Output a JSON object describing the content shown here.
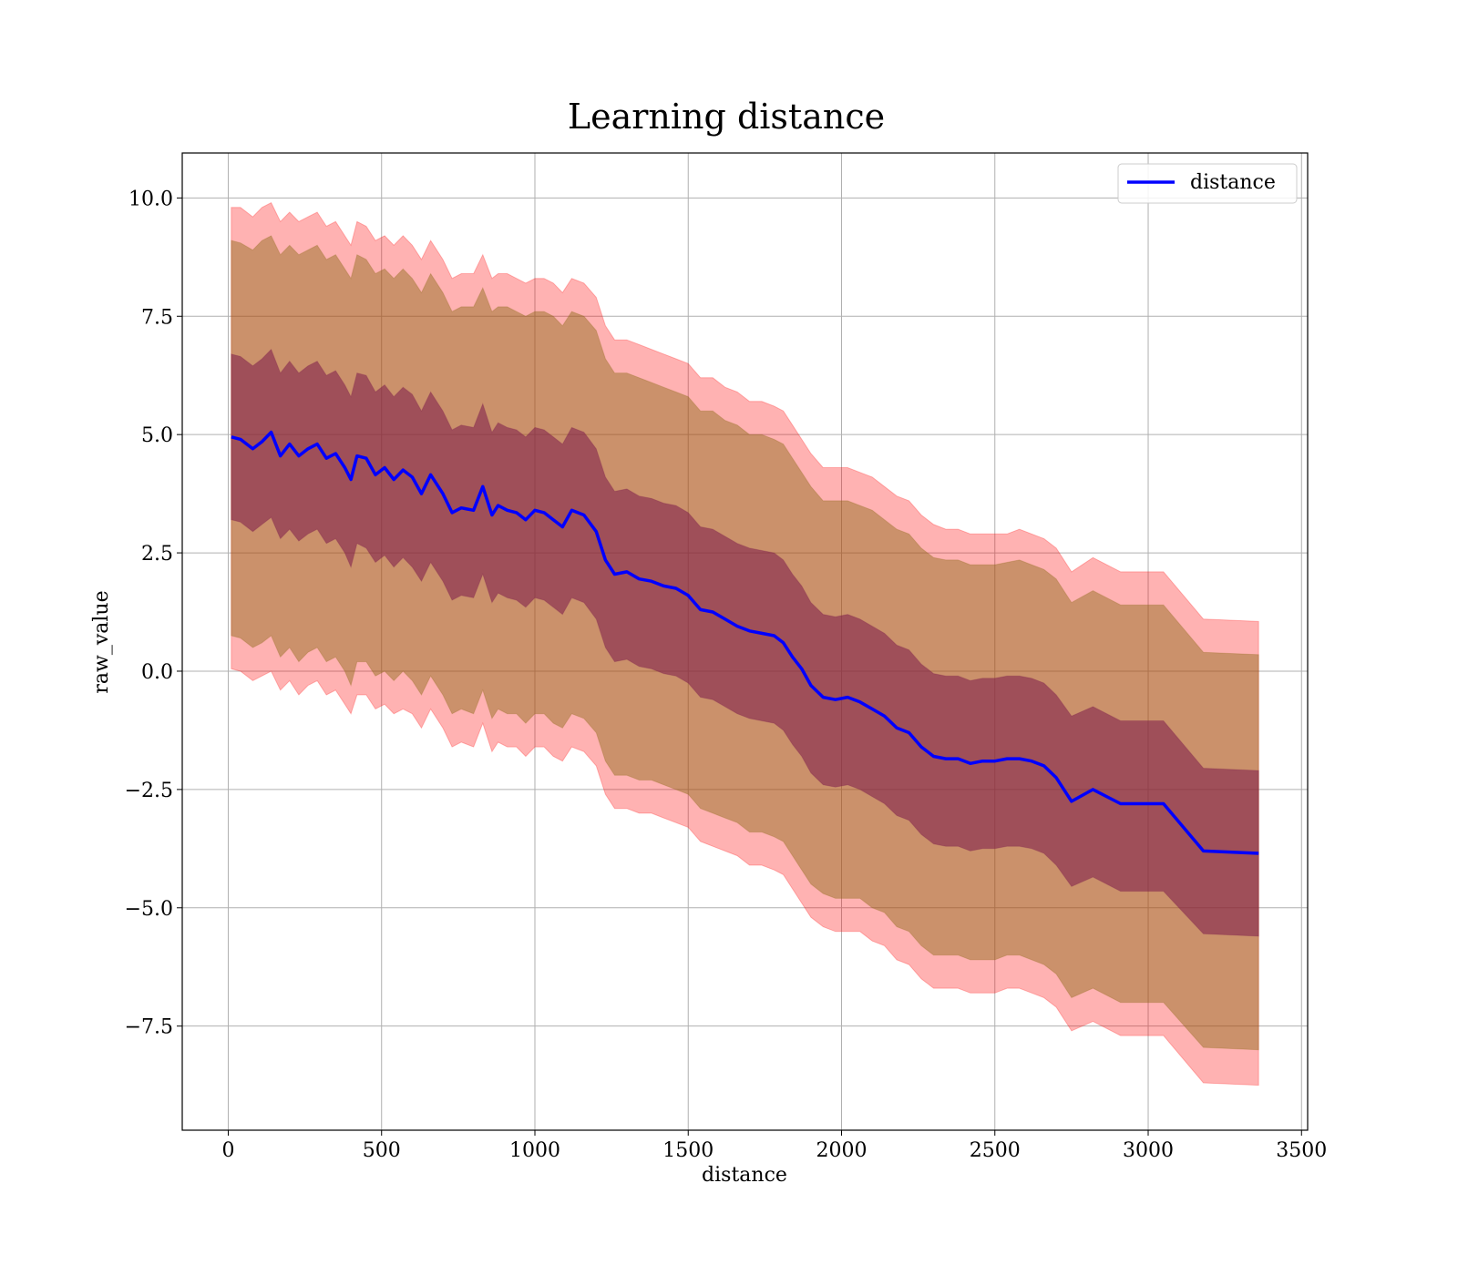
{
  "chart_data": {
    "type": "line",
    "title": "Learning distance",
    "xlabel": "distance",
    "ylabel": "raw_value",
    "xlim": [
      -150,
      3520
    ],
    "ylim": [
      -9.7,
      10.95
    ],
    "xticks": [
      0,
      500,
      1000,
      1500,
      2000,
      2500,
      3000,
      3500
    ],
    "xtick_labels": [
      "0",
      "500",
      "1000",
      "1500",
      "2000",
      "2500",
      "3000",
      "3500"
    ],
    "yticks": [
      -7.5,
      -5.0,
      -2.5,
      0.0,
      2.5,
      5.0,
      7.5,
      10.0
    ],
    "ytick_labels": [
      "−7.5",
      "−5.0",
      "−2.5",
      "0.0",
      "2.5",
      "5.0",
      "7.5",
      "10.0"
    ],
    "grid": true,
    "legend": {
      "position": "top-right",
      "entries": [
        "distance"
      ]
    },
    "colors": {
      "line": "#0000ff",
      "band_outer": "#ff0000",
      "band_middle": "#8b6914",
      "band_inner": "#7b1a4a"
    },
    "x": [
      10,
      40,
      80,
      110,
      140,
      170,
      200,
      230,
      260,
      290,
      320,
      350,
      380,
      400,
      420,
      450,
      480,
      510,
      540,
      570,
      600,
      630,
      660,
      700,
      730,
      760,
      800,
      830,
      860,
      880,
      910,
      940,
      970,
      1000,
      1030,
      1060,
      1090,
      1120,
      1160,
      1200,
      1230,
      1260,
      1300,
      1340,
      1380,
      1420,
      1460,
      1500,
      1540,
      1580,
      1620,
      1660,
      1700,
      1740,
      1780,
      1810,
      1840,
      1870,
      1900,
      1940,
      1980,
      2020,
      2060,
      2100,
      2140,
      2180,
      2220,
      2260,
      2300,
      2340,
      2380,
      2420,
      2460,
      2500,
      2540,
      2580,
      2620,
      2660,
      2700,
      2750,
      2820,
      2910,
      3050,
      3180,
      3360
    ],
    "series": [
      {
        "name": "distance",
        "values": [
          4.95,
          4.9,
          4.7,
          4.85,
          5.05,
          4.55,
          4.8,
          4.55,
          4.7,
          4.8,
          4.5,
          4.6,
          4.3,
          4.05,
          4.55,
          4.5,
          4.15,
          4.3,
          4.05,
          4.25,
          4.1,
          3.75,
          4.15,
          3.75,
          3.35,
          3.45,
          3.4,
          3.9,
          3.3,
          3.5,
          3.4,
          3.35,
          3.2,
          3.4,
          3.35,
          3.2,
          3.05,
          3.4,
          3.3,
          2.95,
          2.35,
          2.05,
          2.1,
          1.95,
          1.9,
          1.8,
          1.75,
          1.6,
          1.3,
          1.25,
          1.1,
          0.95,
          0.85,
          0.8,
          0.75,
          0.6,
          0.3,
          0.05,
          -0.3,
          -0.55,
          -0.6,
          -0.55,
          -0.65,
          -0.8,
          -0.95,
          -1.2,
          -1.3,
          -1.6,
          -1.8,
          -1.85,
          -1.85,
          -1.95,
          -1.9,
          -1.9,
          -1.85,
          -1.85,
          -1.9,
          -2.0,
          -2.25,
          -2.75,
          -2.5,
          -2.8,
          -2.8,
          -3.8,
          -3.85
        ]
      }
    ],
    "bands": [
      {
        "sigma": 3,
        "lower": [
          0.05,
          0.0,
          -0.2,
          -0.1,
          0.0,
          -0.4,
          -0.2,
          -0.5,
          -0.3,
          -0.2,
          -0.5,
          -0.4,
          -0.7,
          -0.9,
          -0.5,
          -0.5,
          -0.8,
          -0.7,
          -0.9,
          -0.8,
          -0.9,
          -1.2,
          -0.8,
          -1.2,
          -1.6,
          -1.5,
          -1.6,
          -1.1,
          -1.7,
          -1.5,
          -1.6,
          -1.6,
          -1.8,
          -1.6,
          -1.6,
          -1.8,
          -1.9,
          -1.6,
          -1.7,
          -2.0,
          -2.6,
          -2.9,
          -2.9,
          -3.0,
          -3.0,
          -3.1,
          -3.2,
          -3.3,
          -3.6,
          -3.7,
          -3.8,
          -3.9,
          -4.1,
          -4.1,
          -4.2,
          -4.3,
          -4.6,
          -4.9,
          -5.2,
          -5.4,
          -5.5,
          -5.5,
          -5.5,
          -5.7,
          -5.8,
          -6.1,
          -6.2,
          -6.5,
          -6.7,
          -6.7,
          -6.7,
          -6.8,
          -6.8,
          -6.8,
          -6.7,
          -6.7,
          -6.8,
          -6.9,
          -7.1,
          -7.6,
          -7.4,
          -7.7,
          -7.7,
          -8.7,
          -8.75
        ],
        "upper": [
          9.8,
          9.8,
          9.6,
          9.8,
          9.9,
          9.5,
          9.7,
          9.5,
          9.6,
          9.7,
          9.4,
          9.5,
          9.2,
          9.0,
          9.5,
          9.4,
          9.1,
          9.2,
          9.0,
          9.2,
          9.0,
          8.7,
          9.1,
          8.7,
          8.3,
          8.4,
          8.4,
          8.8,
          8.3,
          8.4,
          8.4,
          8.3,
          8.2,
          8.3,
          8.3,
          8.2,
          8.0,
          8.3,
          8.2,
          7.9,
          7.3,
          7.0,
          7.0,
          6.9,
          6.8,
          6.7,
          6.6,
          6.5,
          6.2,
          6.2,
          6.0,
          5.9,
          5.7,
          5.7,
          5.6,
          5.5,
          5.2,
          4.9,
          4.6,
          4.3,
          4.3,
          4.3,
          4.2,
          4.1,
          3.9,
          3.7,
          3.6,
          3.3,
          3.1,
          3.0,
          3.0,
          2.9,
          2.9,
          2.9,
          2.9,
          3.0,
          2.9,
          2.8,
          2.6,
          2.1,
          2.4,
          2.1,
          2.1,
          1.1,
          1.05
        ]
      },
      {
        "sigma": 2,
        "lower": [
          0.75,
          0.7,
          0.5,
          0.6,
          0.75,
          0.3,
          0.5,
          0.2,
          0.4,
          0.5,
          0.2,
          0.3,
          0.0,
          -0.3,
          0.2,
          0.2,
          -0.1,
          0.0,
          -0.2,
          0.0,
          -0.2,
          -0.5,
          -0.1,
          -0.5,
          -0.9,
          -0.8,
          -0.9,
          -0.4,
          -1.0,
          -0.8,
          -0.9,
          -0.9,
          -1.1,
          -0.9,
          -0.9,
          -1.1,
          -1.2,
          -0.9,
          -1.0,
          -1.3,
          -1.9,
          -2.2,
          -2.2,
          -2.3,
          -2.3,
          -2.4,
          -2.5,
          -2.6,
          -2.9,
          -3.0,
          -3.1,
          -3.2,
          -3.4,
          -3.4,
          -3.5,
          -3.6,
          -3.9,
          -4.2,
          -4.5,
          -4.7,
          -4.8,
          -4.8,
          -4.8,
          -5.0,
          -5.1,
          -5.4,
          -5.5,
          -5.8,
          -6.0,
          -6.0,
          -6.0,
          -6.1,
          -6.1,
          -6.1,
          -6.0,
          -6.0,
          -6.1,
          -6.2,
          -6.4,
          -6.9,
          -6.7,
          -7.0,
          -7.0,
          -7.95,
          -8.0
        ],
        "upper": [
          9.1,
          9.05,
          8.9,
          9.1,
          9.2,
          8.8,
          9.0,
          8.8,
          8.9,
          9.0,
          8.7,
          8.8,
          8.5,
          8.3,
          8.8,
          8.7,
          8.4,
          8.5,
          8.3,
          8.5,
          8.3,
          8.0,
          8.4,
          8.0,
          7.6,
          7.7,
          7.7,
          8.1,
          7.6,
          7.7,
          7.7,
          7.6,
          7.5,
          7.6,
          7.6,
          7.5,
          7.3,
          7.6,
          7.5,
          7.2,
          6.6,
          6.3,
          6.3,
          6.2,
          6.1,
          6.0,
          5.9,
          5.8,
          5.5,
          5.5,
          5.3,
          5.2,
          5.0,
          5.0,
          4.9,
          4.8,
          4.5,
          4.2,
          3.9,
          3.6,
          3.6,
          3.6,
          3.5,
          3.4,
          3.2,
          3.0,
          2.9,
          2.6,
          2.4,
          2.35,
          2.35,
          2.25,
          2.25,
          2.25,
          2.3,
          2.35,
          2.25,
          2.15,
          1.95,
          1.45,
          1.7,
          1.4,
          1.4,
          0.4,
          0.35
        ]
      },
      {
        "sigma": 1,
        "lower": [
          3.2,
          3.15,
          2.95,
          3.1,
          3.25,
          2.8,
          3.0,
          2.75,
          2.9,
          3.0,
          2.7,
          2.8,
          2.5,
          2.2,
          2.7,
          2.6,
          2.3,
          2.45,
          2.2,
          2.4,
          2.2,
          1.9,
          2.3,
          1.9,
          1.5,
          1.6,
          1.55,
          2.05,
          1.45,
          1.65,
          1.55,
          1.5,
          1.35,
          1.55,
          1.5,
          1.35,
          1.2,
          1.55,
          1.45,
          1.1,
          0.5,
          0.2,
          0.25,
          0.1,
          0.05,
          -0.05,
          -0.1,
          -0.25,
          -0.55,
          -0.6,
          -0.75,
          -0.9,
          -1.0,
          -1.05,
          -1.1,
          -1.25,
          -1.55,
          -1.8,
          -2.15,
          -2.4,
          -2.45,
          -2.4,
          -2.5,
          -2.65,
          -2.8,
          -3.05,
          -3.15,
          -3.45,
          -3.65,
          -3.7,
          -3.7,
          -3.8,
          -3.75,
          -3.75,
          -3.7,
          -3.7,
          -3.75,
          -3.85,
          -4.1,
          -4.55,
          -4.35,
          -4.65,
          -4.65,
          -5.55,
          -5.6
        ],
        "upper": [
          6.7,
          6.65,
          6.45,
          6.6,
          6.8,
          6.3,
          6.55,
          6.3,
          6.45,
          6.55,
          6.25,
          6.35,
          6.05,
          5.8,
          6.3,
          6.25,
          5.9,
          6.05,
          5.8,
          6.0,
          5.85,
          5.5,
          5.9,
          5.5,
          5.1,
          5.2,
          5.15,
          5.65,
          5.05,
          5.25,
          5.15,
          5.1,
          4.95,
          5.15,
          5.1,
          4.95,
          4.8,
          5.15,
          5.05,
          4.7,
          4.1,
          3.8,
          3.85,
          3.7,
          3.65,
          3.55,
          3.5,
          3.35,
          3.05,
          3.0,
          2.85,
          2.7,
          2.6,
          2.55,
          2.5,
          2.35,
          2.05,
          1.8,
          1.45,
          1.2,
          1.15,
          1.2,
          1.1,
          0.95,
          0.8,
          0.55,
          0.45,
          0.15,
          -0.05,
          -0.1,
          -0.1,
          -0.2,
          -0.15,
          -0.15,
          -0.1,
          -0.1,
          -0.15,
          -0.25,
          -0.5,
          -0.95,
          -0.75,
          -1.05,
          -1.05,
          -2.05,
          -2.1
        ]
      }
    ]
  }
}
